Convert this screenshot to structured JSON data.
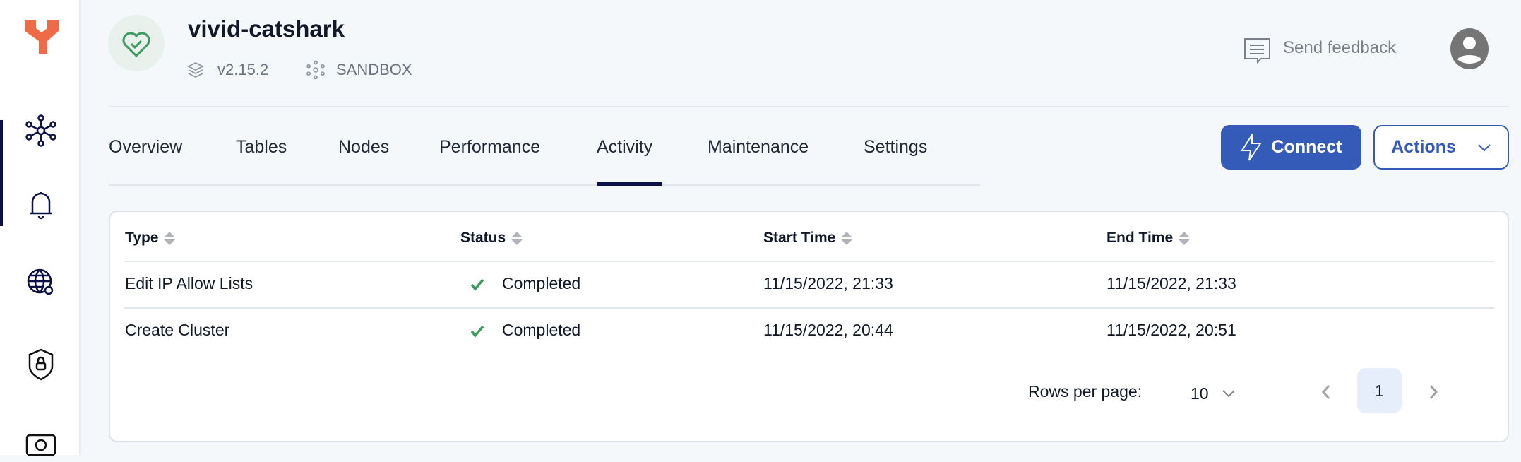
{
  "sidebar": {
    "items": [
      {
        "icon": "cluster-icon",
        "active": true
      },
      {
        "icon": "bell-icon"
      },
      {
        "icon": "globe-gear-icon"
      },
      {
        "icon": "shield-lock-icon"
      },
      {
        "icon": "money-icon"
      }
    ],
    "brand_color": "#ef6a47"
  },
  "header": {
    "title": "vivid-catshark",
    "health_icon": "heart-check-icon",
    "version": "v2.15.2",
    "tier": "SANDBOX",
    "feedback": "Send feedback"
  },
  "tabs": [
    {
      "label": "Overview"
    },
    {
      "label": "Tables"
    },
    {
      "label": "Nodes"
    },
    {
      "label": "Performance"
    },
    {
      "label": "Activity",
      "active": true
    },
    {
      "label": "Maintenance"
    },
    {
      "label": "Settings"
    }
  ],
  "buttons": {
    "connect": "Connect",
    "actions": "Actions",
    "accent": "#355bb9"
  },
  "table": {
    "columns": [
      "Type",
      "Status",
      "Start Time",
      "End Time"
    ],
    "rows": [
      [
        "Edit IP Allow Lists",
        "Completed",
        "11/15/2022, 21:33",
        "11/15/2022, 21:33"
      ],
      [
        "Create Cluster",
        "Completed",
        "11/15/2022, 20:44",
        "11/15/2022, 20:51"
      ]
    ]
  },
  "pagination": {
    "rows_label": "Rows per page:",
    "rows_value": "10",
    "current_page": "1"
  }
}
